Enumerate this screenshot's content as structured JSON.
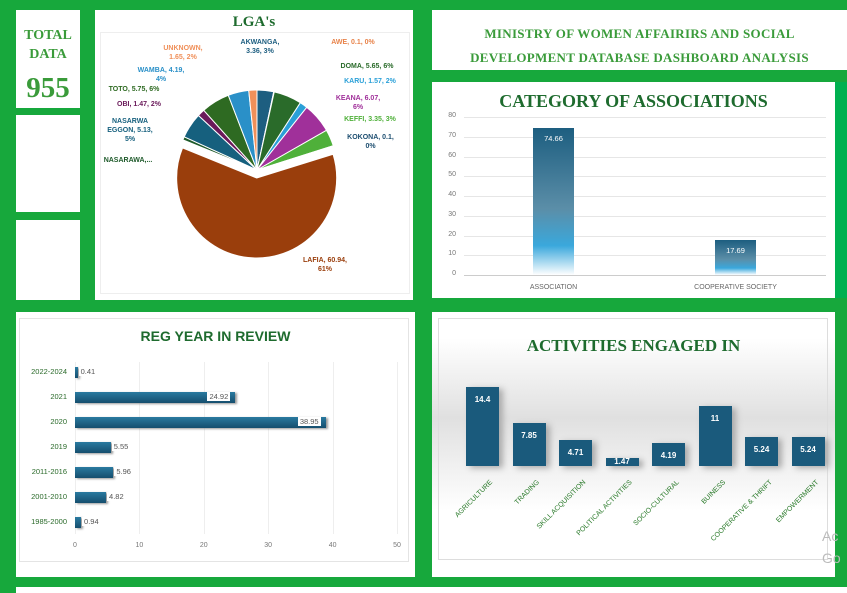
{
  "total": {
    "title_line1": "TOTAL",
    "title_line2": "DATA",
    "value": "955"
  },
  "header": {
    "line1": "MINISTRY OF WOMEN AFFAIRIRS AND SOCIAL",
    "line2": "DEVELOPMENT DATABASE DASHBOARD ANALYSIS"
  },
  "colors": {
    "background": "#17a83c",
    "title_green": "#1e6b2e",
    "bar_blue": "#1d5e80"
  },
  "watermark": {
    "line1": "Ac",
    "line2": "Go"
  },
  "chart_data": [
    {
      "type": "pie",
      "title": "LGA's",
      "slices": [
        {
          "name": "AKWANGA",
          "value": 3.36,
          "label": "AKWANGA, 3.36, 3%",
          "color": "#1d5e80"
        },
        {
          "name": "AWE",
          "value": 0.1,
          "label": "AWE, 0.1, 0%",
          "color": "#e8834a"
        },
        {
          "name": "DOMA",
          "value": 5.65,
          "label": "DOMA, 5.65, 6%",
          "color": "#2a6b2a"
        },
        {
          "name": "KARU",
          "value": 1.57,
          "label": "KARU, 1.57, 2%",
          "color": "#2aa0d8"
        },
        {
          "name": "KEANA",
          "value": 6.07,
          "label": "KEANA, 6.07, 6%",
          "color": "#a0309a"
        },
        {
          "name": "KEFFI",
          "value": 3.35,
          "label": "KEFFI, 3.35, 3%",
          "color": "#4fb03a"
        },
        {
          "name": "KOKONA",
          "value": 0.1,
          "label": "KOKONA, 0.1, 0%",
          "color": "#1d4e70"
        },
        {
          "name": "LAFIA",
          "value": 60.94,
          "label": "LAFIA, 60.94, 61%",
          "color": "#9a3e0c"
        },
        {
          "name": "NASARAWA",
          "label": "NASARAWA,...",
          "color": "#1e5a2a"
        },
        {
          "name": "NASARWA EGGON",
          "value": 5.13,
          "label": "NASARWA EGGON, 5.13, 5%",
          "color": "#16607e"
        },
        {
          "name": "OBI",
          "value": 1.47,
          "label": "OBI, 1.47, 2%",
          "color": "#6a1a5a"
        },
        {
          "name": "TOTO",
          "value": 5.75,
          "label": "TOTO, 5.75, 6%",
          "color": "#2e6a22"
        },
        {
          "name": "WAMBA",
          "value": 4.19,
          "label": "WAMBA, 4.19, 4%",
          "color": "#2a90c8"
        },
        {
          "name": "UNKNOWN",
          "value": 1.65,
          "label": "UNKNOWN, 1.65, 2%",
          "color": "#f0905a"
        }
      ]
    },
    {
      "type": "bar",
      "title": "CATEGORY OF ASSOCIATIONS",
      "categories": [
        "ASSOCIATION",
        "COOPERATIVE SOCIETY"
      ],
      "values": [
        74.66,
        17.69
      ],
      "value_labels": [
        "74.66",
        "17.69"
      ],
      "ylim": [
        0,
        80
      ],
      "yticks": [
        "0",
        "10",
        "20",
        "30",
        "40",
        "50",
        "60",
        "70",
        "80"
      ],
      "grid": true
    },
    {
      "type": "bar",
      "orientation": "horizontal",
      "title": "REG YEAR IN REVIEW",
      "categories": [
        "2022-2024",
        "2021",
        "2020",
        "2019",
        "2011-2016",
        "2001-2010",
        "1985-2000"
      ],
      "values": [
        0.41,
        24.92,
        38.95,
        5.55,
        5.96,
        4.82,
        0.94
      ],
      "value_labels": [
        "0.41",
        "24.92",
        "38.95",
        "5.55",
        "5.96",
        "4.82",
        "0.94"
      ],
      "xlim": [
        0,
        50
      ],
      "xticks": [
        "0",
        "10",
        "20",
        "30",
        "40",
        "50"
      ],
      "grid": true
    },
    {
      "type": "bar",
      "title": "ACTIVITIES ENGAGED IN",
      "categories": [
        "AGRICULTURE",
        "TRADING",
        "SKILL ACQUISITION",
        "POLITICAL ACTIVITIES",
        "SOCIO-CULTURAL",
        "BUINESS",
        "COOPERATIVE & THRIFT",
        "EMPOWERMENT"
      ],
      "values": [
        14.4,
        7.85,
        4.71,
        1.47,
        4.19,
        11,
        5.24,
        5.24
      ],
      "value_labels": [
        "14.4",
        "7.85",
        "4.71",
        "1.47",
        "4.19",
        "11",
        "5.24",
        "5.24"
      ],
      "grid": false
    }
  ]
}
